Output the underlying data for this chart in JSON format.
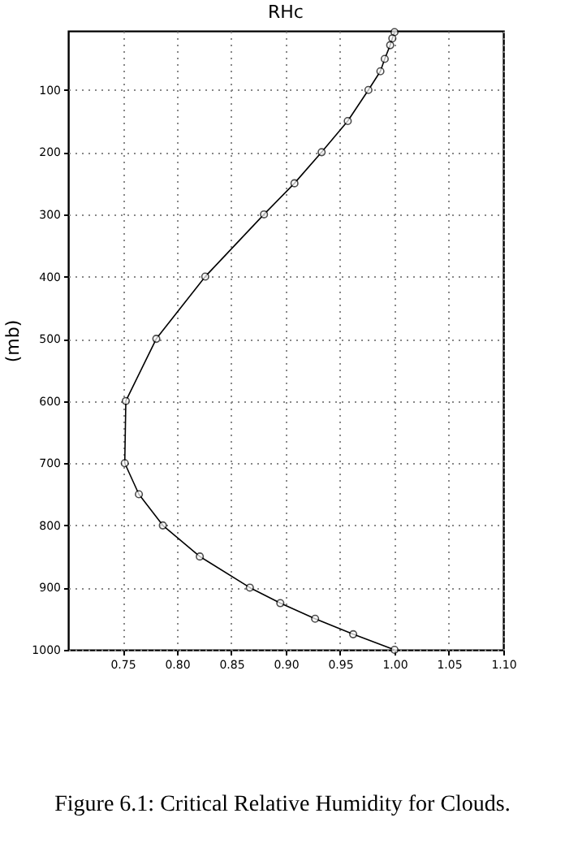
{
  "chart_data": {
    "type": "line",
    "title": "RHc",
    "ylabel": "(mb)",
    "x": [
      1.0,
      0.998,
      0.996,
      0.991,
      0.987,
      0.976,
      0.957,
      0.933,
      0.908,
      0.88,
      0.826,
      0.781,
      0.753,
      0.752,
      0.765,
      0.787,
      0.821,
      0.867,
      0.895,
      0.927,
      0.962,
      1.0
    ],
    "series": [
      {
        "color": "#000000",
        "values": [
          7,
          17,
          28,
          50,
          70,
          100,
          150,
          200,
          250,
          300,
          400,
          500,
          600,
          700,
          750,
          800,
          850,
          900,
          925,
          950,
          975,
          1000
        ]
      }
    ],
    "xlim": [
      0.7,
      1.1
    ],
    "xticks": [
      0.75,
      {
        "value": 0.8,
        "label": "0.80"
      },
      0.85,
      {
        "value": 0.9,
        "label": "0.90"
      },
      0.95,
      {
        "value": 1.0,
        "label": "1.00"
      },
      1.05,
      {
        "value": 1.1,
        "label": "1.10"
      }
    ],
    "ylim": [
      1000,
      5
    ],
    "yticks": [
      100,
      200,
      300,
      400,
      500,
      600,
      700,
      800,
      900,
      1000
    ],
    "grid": true,
    "marker": "circle",
    "line_style": "solid",
    "legend": false,
    "annotations": [
      "Figure 6.1: Critical Relative Humidity for Clouds."
    ]
  }
}
